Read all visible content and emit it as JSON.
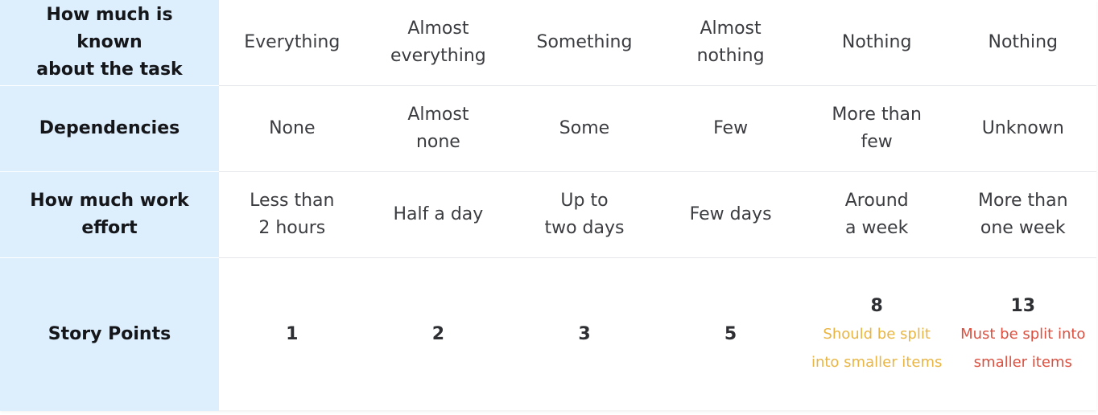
{
  "rows": [
    {
      "header": "How much is known\nabout the task",
      "cells": [
        "Everything",
        "Almost\neverything",
        "Something",
        "Almost\nnothing",
        "Nothing",
        "Nothing"
      ]
    },
    {
      "header": "Dependencies",
      "cells": [
        "None",
        "Almost\nnone",
        "Some",
        "Few",
        "More than\nfew",
        "Unknown"
      ]
    },
    {
      "header": "How much work\neffort",
      "cells": [
        "Less than\n2 hours",
        "Half a day",
        "Up to\ntwo days",
        "Few days",
        "Around\na week",
        "More than\none week"
      ]
    }
  ],
  "points_row": {
    "header": "Story Points",
    "values": [
      "1",
      "2",
      "3",
      "5",
      "8",
      "13"
    ],
    "notes": [
      "",
      "",
      "",
      "",
      "Should be split\ninto smaller items",
      "Must be split into\nsmaller items"
    ]
  },
  "colors": {
    "header_bg": "#ddeefd",
    "warning": "#e9b542",
    "critical": "#dc4f3f"
  }
}
